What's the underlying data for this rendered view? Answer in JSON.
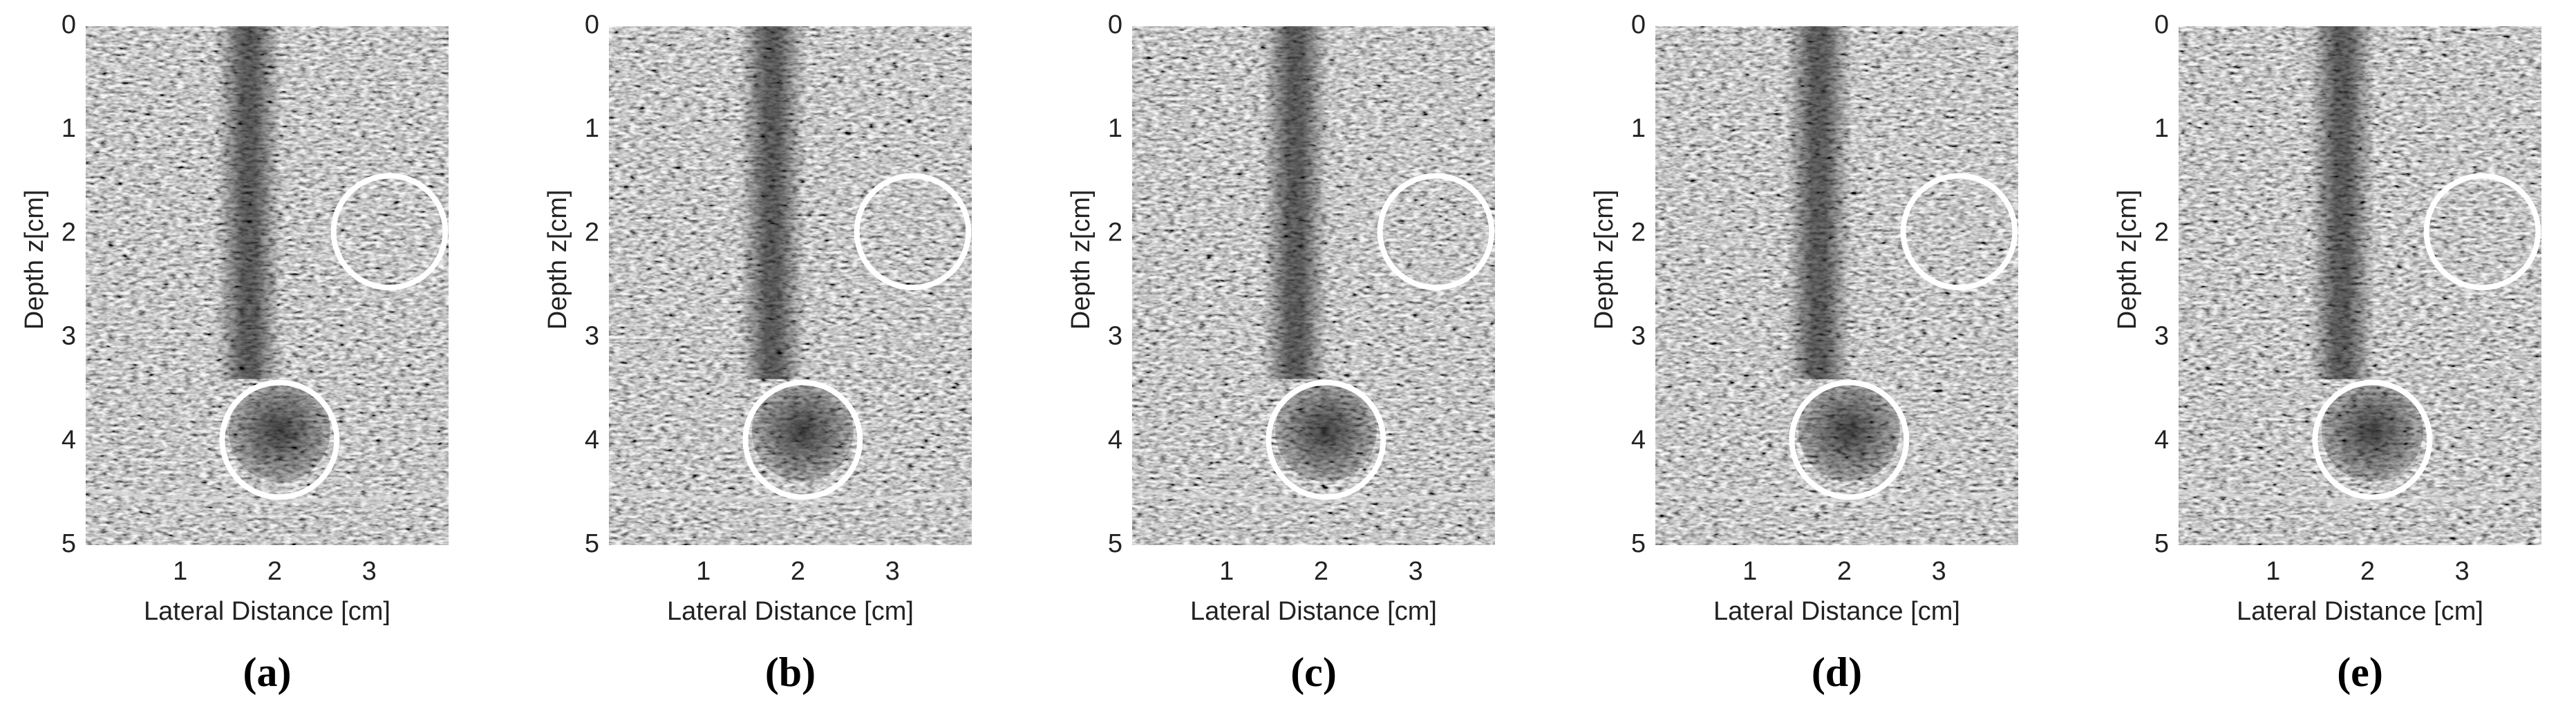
{
  "chart_data": [
    {
      "type": "image",
      "label": "(a)",
      "xlabel": "Lateral Distance [cm]",
      "ylabel": "Depth z[cm]",
      "xlim": [
        0,
        3.84
      ],
      "ylim": [
        0,
        5
      ],
      "xticks": [
        1,
        2,
        3
      ],
      "yticks": [
        0,
        1,
        2,
        3,
        4,
        5
      ]
    },
    {
      "type": "image",
      "label": "(b)",
      "xlabel": "Lateral Distance [cm]",
      "ylabel": "Depth z[cm]",
      "xlim": [
        0,
        3.84
      ],
      "ylim": [
        0,
        5
      ],
      "xticks": [
        1,
        2,
        3
      ],
      "yticks": [
        0,
        1,
        2,
        3,
        4,
        5
      ]
    },
    {
      "type": "image",
      "label": "(c)",
      "xlabel": "Lateral Distance [cm]",
      "ylabel": "Depth z[cm]",
      "xlim": [
        0,
        3.84
      ],
      "ylim": [
        0,
        5
      ],
      "xticks": [
        1,
        2,
        3
      ],
      "yticks": [
        0,
        1,
        2,
        3,
        4,
        5
      ]
    },
    {
      "type": "image",
      "label": "(d)",
      "xlabel": "Lateral Distance [cm]",
      "ylabel": "Depth z[cm]",
      "xlim": [
        0,
        3.84
      ],
      "ylim": [
        0,
        5
      ],
      "xticks": [
        1,
        2,
        3
      ],
      "yticks": [
        0,
        1,
        2,
        3,
        4,
        5
      ]
    },
    {
      "type": "image",
      "label": "(e)",
      "xlabel": "Lateral Distance [cm]",
      "ylabel": "Depth z[cm]",
      "xlim": [
        0,
        3.84
      ],
      "ylim": [
        0,
        5
      ],
      "xticks": [
        1,
        2,
        3
      ],
      "yticks": [
        0,
        1,
        2,
        3,
        4,
        5
      ]
    }
  ]
}
